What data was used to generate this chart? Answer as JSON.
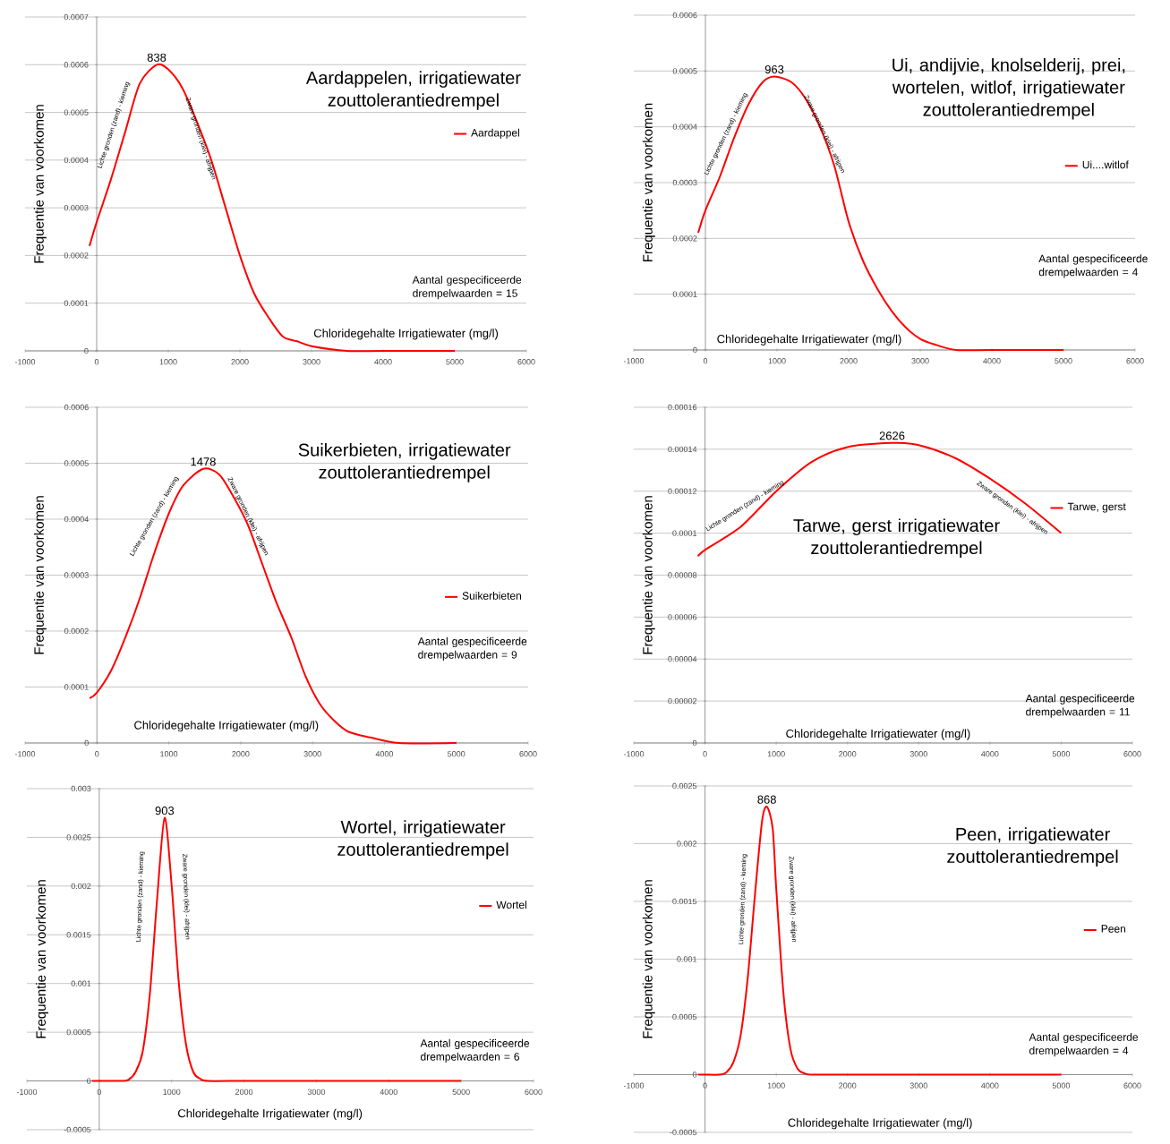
{
  "chart_data": [
    {
      "type": "line",
      "title": "Aardappelen, irrigatiewater zouttolerantiedrempel",
      "xlabel": "Chloridegehalte Irrigatiewater (mg/l)",
      "ylabel": "Frequentie van voorkomen",
      "xlim": [
        -1000,
        6000
      ],
      "xticks": [
        -1000,
        0,
        1000,
        2000,
        3000,
        4000,
        5000,
        6000
      ],
      "ylim": [
        0,
        0.0007
      ],
      "yticks": [
        0,
        0.0001,
        0.0002,
        0.0003,
        0.0004,
        0.0005,
        0.0006,
        0.0007
      ],
      "grid": "y",
      "legend": "right",
      "line_style": "solid",
      "series": [
        {
          "name": "Aardappel",
          "color": "#ff0000",
          "x": [
            -100,
            0,
            200,
            400,
            600,
            838,
            1000,
            1200,
            1400,
            1600,
            1800,
            2000,
            2200,
            2400,
            2600,
            2800,
            3000,
            3500,
            4000,
            5000
          ],
          "values": [
            0.00022,
            0.00027,
            0.00036,
            0.00046,
            0.00056,
            0.0006,
            0.00059,
            0.00055,
            0.00048,
            0.0004,
            0.0003,
            0.0002,
            0.00012,
            7e-05,
            3e-05,
            2e-05,
            1e-05,
            0,
            0,
            0
          ]
        }
      ],
      "annotations": [
        {
          "text": "838",
          "x": 838,
          "y": 0.0006
        },
        "Lichte gronden (zand) - kieming",
        "Zware gronden (klei) - afrijpen",
        "Aantal gespecificeerde drempelwaarden = 15"
      ]
    },
    {
      "type": "line",
      "title": "Ui, andijvie, knolselderij, prei, wortelen, witlof, irrigatiewater zouttolerantiedrempel",
      "xlabel": "Chloridegehalte Irrigatiewater (mg/l)",
      "ylabel": "Frequentie van voorkomen",
      "xlim": [
        -1000,
        6000
      ],
      "xticks": [
        -1000,
        0,
        1000,
        2000,
        3000,
        4000,
        5000,
        6000
      ],
      "ylim": [
        0,
        0.0006
      ],
      "yticks": [
        0,
        0.0001,
        0.0002,
        0.0003,
        0.0004,
        0.0005,
        0.0006
      ],
      "grid": "y",
      "legend": "right",
      "line_style": "solid",
      "series": [
        {
          "name": "Ui....witlof",
          "color": "#ff0000",
          "x": [
            -100,
            0,
            200,
            400,
            600,
            800,
            963,
            1200,
            1400,
            1600,
            1800,
            2000,
            2200,
            2400,
            2600,
            2800,
            3000,
            3200,
            3500,
            4000,
            5000
          ],
          "values": [
            0.00021,
            0.00025,
            0.00031,
            0.00038,
            0.00044,
            0.00048,
            0.00049,
            0.00048,
            0.00045,
            0.0004,
            0.00033,
            0.00023,
            0.00016,
            0.00011,
            7e-05,
            4e-05,
            2e-05,
            1e-05,
            0,
            0,
            0
          ]
        }
      ],
      "annotations": [
        {
          "text": "963",
          "x": 963,
          "y": 0.00049
        },
        "Lichte gronden (zand) - kieming",
        "Zware gronden (klei) - afrijpen",
        "Aantal gespecificeerde drempelwaarden = 4"
      ]
    },
    {
      "type": "line",
      "title": "Suikerbieten, irrigatiewater zouttolerantiedrempel",
      "xlabel": "Chloridegehalte Irrigatiewater (mg/l)",
      "ylabel": "Frequentie van voorkomen",
      "xlim": [
        -1000,
        6000
      ],
      "xticks": [
        -1000,
        0,
        1000,
        2000,
        3000,
        4000,
        5000,
        6000
      ],
      "ylim": [
        0,
        0.0006
      ],
      "yticks": [
        0,
        0.0001,
        0.0002,
        0.0003,
        0.0004,
        0.0005,
        0.0006
      ],
      "grid": "y",
      "legend": "right",
      "line_style": "solid",
      "series": [
        {
          "name": "Suikerbieten",
          "color": "#ff0000",
          "x": [
            -100,
            0,
            200,
            400,
            600,
            800,
            1000,
            1200,
            1478,
            1700,
            1900,
            2100,
            2300,
            2500,
            2700,
            2900,
            3100,
            3300,
            3500,
            3800,
            4200,
            5000
          ],
          "values": [
            8e-05,
            9e-05,
            0.00013,
            0.00019,
            0.00026,
            0.00034,
            0.00041,
            0.00046,
            0.00049,
            0.00048,
            0.00044,
            0.00039,
            0.00032,
            0.00025,
            0.00019,
            0.00012,
            7e-05,
            4e-05,
            2e-05,
            1e-05,
            0,
            0
          ]
        }
      ],
      "annotations": [
        {
          "text": "1478",
          "x": 1478,
          "y": 0.00049
        },
        "Lichte gronden (zand) - kieming",
        "Zware gronden (klei) - afrijpen",
        "Aantal gespecificeerde drempelwaarden = 9"
      ]
    },
    {
      "type": "line",
      "title": "Tarwe, gerst irrigatiewater zouttolerantiedrempel",
      "xlabel": "Chloridegehalte Irrigatiewater (mg/l)",
      "ylabel": "Frequentie van voorkomen",
      "xlim": [
        -1000,
        6000
      ],
      "xticks": [
        -1000,
        0,
        1000,
        2000,
        3000,
        4000,
        5000,
        6000
      ],
      "ylim": [
        0,
        0.00016
      ],
      "yticks": [
        0,
        {
          "value": 2e-05,
          "label": "0.00002"
        },
        {
          "value": 4e-05,
          "label": "0.00004"
        },
        {
          "value": 6e-05,
          "label": "0.00006"
        },
        {
          "value": 8e-05,
          "label": "0.00008"
        },
        0.0001,
        0.00012,
        0.00014,
        0.00016
      ],
      "grid": "y",
      "legend": "right",
      "line_style": "solid",
      "series": [
        {
          "name": "Tarwe, gerst",
          "color": "#ff0000",
          "x": [
            -100,
            0,
            500,
            1000,
            1500,
            2000,
            2626,
            3000,
            3500,
            4000,
            4500,
            5000
          ],
          "values": [
            8.9e-05,
            9.2e-05,
            0.000103,
            0.00012,
            0.000134,
            0.000141,
            0.000143,
            0.000142,
            0.000136,
            0.000126,
            0.000114,
            0.0001
          ]
        }
      ],
      "annotations": [
        {
          "text": "2626",
          "x": 2626,
          "y": 0.000143
        },
        "Lichte gronden (zand) - kieming",
        "Zware gronden (klei) - afrijpen",
        "Aantal gespecificeerde drempelwaarden = 11"
      ]
    },
    {
      "type": "line",
      "title": "Wortel, irrigatiewater zouttolerantiedrempel",
      "xlabel": "Chloridegehalte Irrigatiewater (mg/l)",
      "ylabel": "Frequentie van voorkomen",
      "xlim": [
        -1000,
        6000
      ],
      "xticks": [
        -1000,
        0,
        1000,
        2000,
        3000,
        4000,
        5000,
        6000
      ],
      "ylim": [
        -0.0005,
        0.003
      ],
      "yticks": [
        -0.0005,
        0,
        0.0005,
        0.001,
        0.0015,
        0.002,
        0.0025,
        0.003
      ],
      "grid": "y",
      "legend": "right",
      "line_style": "solid",
      "series": [
        {
          "name": "Wortel",
          "color": "#ff0000",
          "x": [
            -100,
            0,
            300,
            400,
            500,
            600,
            700,
            800,
            903,
            1000,
            1100,
            1200,
            1300,
            1400,
            1500,
            2000,
            5000
          ],
          "values": [
            0,
            0,
            0,
            1e-05,
            9e-05,
            0.0003,
            0.0009,
            0.00187,
            0.0027,
            0.00201,
            0.001,
            0.00037,
            9e-05,
            2e-05,
            0,
            0,
            0
          ]
        }
      ],
      "annotations": [
        {
          "text": "903",
          "x": 903,
          "y": 0.0027
        },
        "Lichte gronden (zand) - kieming",
        "Zware gronden (klei) - afrijpen",
        "Aantal gespecificeerde drempelwaarden = 6"
      ]
    },
    {
      "type": "line",
      "title": "Peen, irrigatiewater zouttolerantiedrempel",
      "xlabel": "Chloridegehalte Irrigatiewater (mg/l)",
      "ylabel": "Frequentie van voorkomen",
      "xlim": [
        -1000,
        6000
      ],
      "xticks": [
        -1000,
        0,
        1000,
        2000,
        3000,
        4000,
        5000,
        6000
      ],
      "ylim": [
        -0.0005,
        0.0025
      ],
      "yticks": [
        -0.0005,
        0,
        0.0005,
        0.001,
        0.0015,
        0.002,
        0.0025
      ],
      "grid": "y",
      "legend": "right",
      "line_style": "solid",
      "series": [
        {
          "name": "Peen",
          "color": "#ff0000",
          "x": [
            -100,
            0,
            200,
            300,
            400,
            500,
            600,
            700,
            800,
            868,
            950,
            1000,
            1100,
            1200,
            1300,
            1400,
            1500,
            2000,
            5000
          ],
          "values": [
            0,
            0,
            0,
            2e-05,
            0.00011,
            0.00034,
            0.00084,
            0.00155,
            0.00219,
            0.00232,
            0.00213,
            0.00161,
            0.00071,
            0.00022,
            5e-05,
            1e-05,
            0,
            0,
            0
          ]
        }
      ],
      "annotations": [
        {
          "text": "868",
          "x": 868,
          "y": 0.00232
        },
        "Lichte gronden (zand) - kieming",
        "Zware gronden (klei) - afrijpen",
        "Aantal gespecificeerde drempelwaarden = 4"
      ]
    }
  ]
}
